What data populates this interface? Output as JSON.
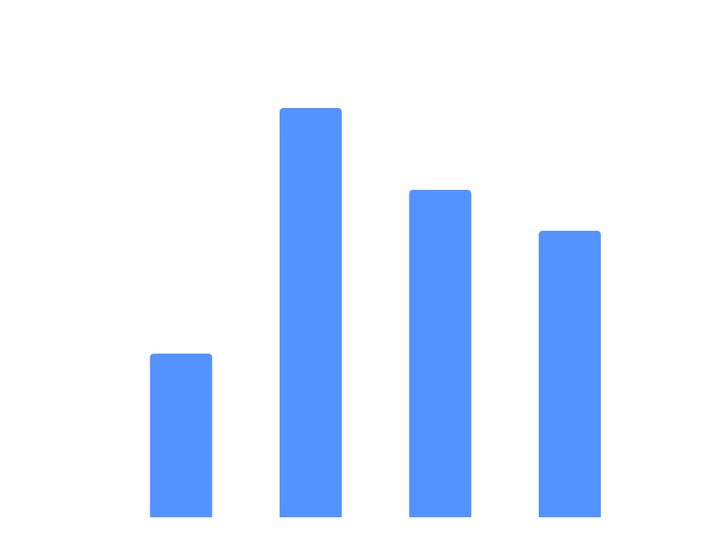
{
  "chart_data": {
    "type": "bar",
    "categories": [
      "",
      "",
      "",
      ""
    ],
    "values": [
      40,
      100,
      80,
      70
    ],
    "ylim": [
      0,
      100
    ],
    "grid": false,
    "legend": "none",
    "bar_color": "#5492ff"
  }
}
